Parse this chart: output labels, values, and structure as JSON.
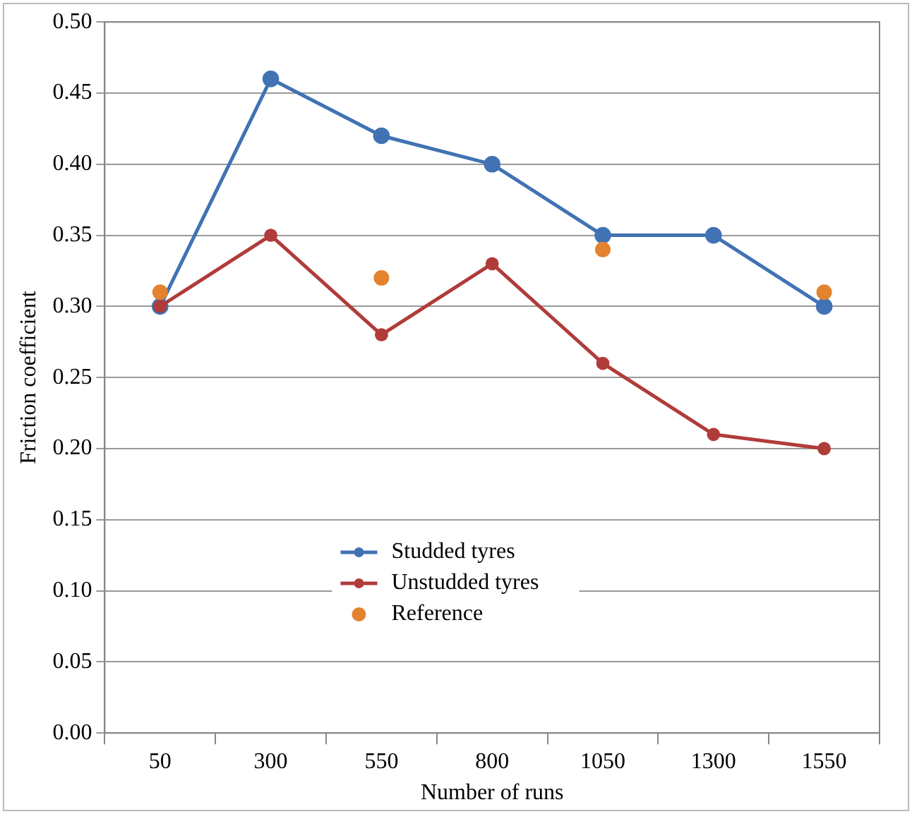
{
  "chart_data": {
    "type": "line",
    "xlabel": "Number of runs",
    "ylabel": "Friction coefficient",
    "categories": [
      "50",
      "300",
      "550",
      "800",
      "1050",
      "1300",
      "1550"
    ],
    "series": [
      {
        "name": "Studded tyres",
        "color": "#4172b4",
        "marker": "circle",
        "values": [
          0.3,
          0.46,
          0.42,
          0.4,
          0.35,
          0.35,
          0.3
        ]
      },
      {
        "name": "Unstudded tyres",
        "color": "#b03c3a",
        "marker": "circle",
        "values": [
          0.3,
          0.35,
          0.28,
          0.33,
          0.26,
          0.21,
          0.2
        ]
      },
      {
        "name": "Reference",
        "type": "scatter",
        "color": "#e3832f",
        "marker": "circle",
        "values": [
          0.31,
          null,
          0.32,
          null,
          0.34,
          null,
          0.31
        ]
      }
    ],
    "ylim": [
      0,
      0.5
    ],
    "yticks": [
      {
        "value": 0,
        "label": "0.00"
      },
      {
        "value": 0.05,
        "label": "0.05"
      },
      {
        "value": 0.1,
        "label": "0.10"
      },
      {
        "value": 0.15,
        "label": "0.15"
      },
      {
        "value": 0.2,
        "label": "0.20"
      },
      {
        "value": 0.25,
        "label": "0.25"
      },
      {
        "value": 0.3,
        "label": "0.30"
      },
      {
        "value": 0.35,
        "label": "0.35"
      },
      {
        "value": 0.4,
        "label": "0.40"
      },
      {
        "value": 0.45,
        "label": "0.45"
      },
      {
        "value": 0.5,
        "label": "0.50"
      }
    ],
    "grid": "y",
    "legend": "bottom"
  }
}
